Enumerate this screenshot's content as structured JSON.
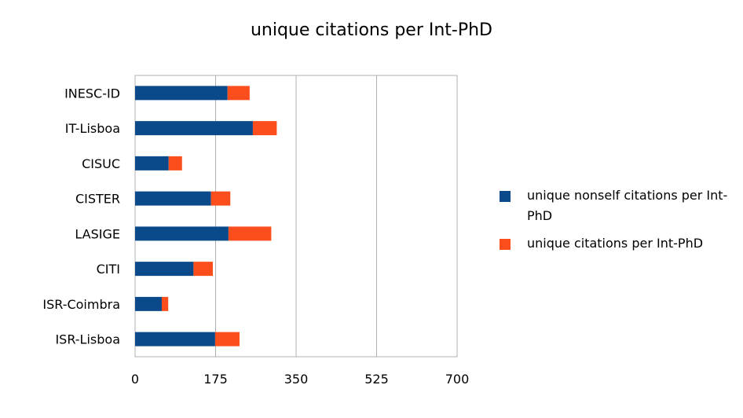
{
  "chart_data": {
    "type": "bar",
    "orientation": "horizontal",
    "stacked": true,
    "title": "unique citations per Int-PhD",
    "categories": [
      "INESC-ID",
      "IT-Lisboa",
      "CISUC",
      "CISTER",
      "LASIGE",
      "CITI",
      "ISR-Coimbra",
      "ISR-Lisboa"
    ],
    "series": [
      {
        "name": "unique nonself citations per Int-PhD",
        "color": "#0b4a8a",
        "values": [
          201,
          256,
          73,
          165,
          203,
          127,
          58,
          174
        ]
      },
      {
        "name": "unique citations per Int-PhD",
        "color": "#fc4e1c",
        "values": [
          48,
          52,
          29,
          42,
          93,
          42,
          14,
          53
        ]
      }
    ],
    "xlim": [
      0,
      700
    ],
    "xticks": [
      "0",
      "175",
      "350",
      "525",
      "700"
    ],
    "grid": true,
    "legend_position": "right"
  }
}
